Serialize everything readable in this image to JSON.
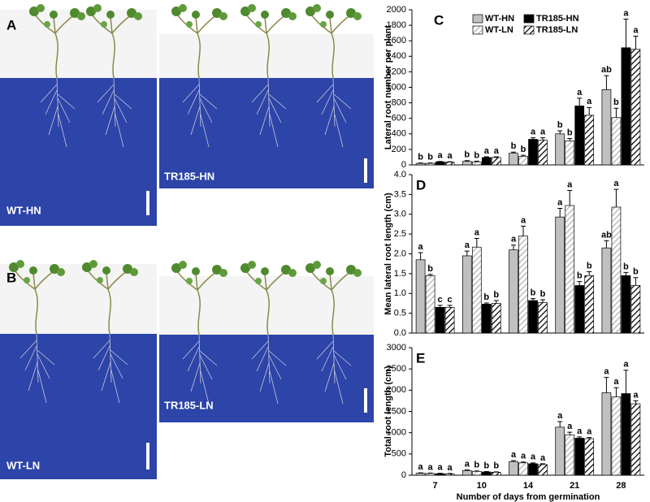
{
  "photos": [
    {
      "panel": "A",
      "labels": [
        "WT-HN",
        "TR185-HN"
      ]
    },
    {
      "panel": "B",
      "labels": [
        "WT-LN",
        "TR185-LN"
      ]
    }
  ],
  "chart_data": [
    {
      "type": "bar",
      "panel": "C",
      "y_label": "Lateral root number per plant",
      "ylim": [
        0,
        2000
      ],
      "yticks": [
        0,
        200,
        400,
        600,
        800,
        1000,
        1200,
        1400,
        1600,
        1800,
        2000
      ],
      "legend": "top",
      "series": [
        {
          "name": "WT-HN",
          "color": "#c0c0c0",
          "hatch": false,
          "values": [
            20,
            45,
            150,
            400,
            970
          ],
          "errors": [
            5,
            10,
            15,
            40,
            180
          ],
          "letters": [
            "b",
            "b",
            "b",
            "b",
            "ab"
          ]
        },
        {
          "name": "WT-LN",
          "color": "#b0b0b0",
          "hatch": true,
          "values": [
            20,
            40,
            110,
            310,
            610
          ],
          "errors": [
            5,
            8,
            15,
            30,
            120
          ],
          "letters": [
            "b",
            "b",
            "b",
            "b",
            "b"
          ]
        },
        {
          "name": "TR185-HN",
          "color": "#000000",
          "hatch": false,
          "values": [
            40,
            95,
            330,
            760,
            1510
          ],
          "errors": [
            5,
            10,
            20,
            100,
            370
          ],
          "letters": [
            "a",
            "a",
            "a",
            "a",
            "a"
          ]
        },
        {
          "name": "TR185-LN",
          "color": "#000000",
          "hatch": true,
          "values": [
            35,
            95,
            320,
            640,
            1490
          ],
          "errors": [
            5,
            10,
            30,
            100,
            170
          ],
          "letters": [
            "a",
            "a",
            "a",
            "a",
            "a"
          ]
        }
      ]
    },
    {
      "type": "bar",
      "panel": "D",
      "y_label": "Mean lateral root length (cm)",
      "ylim": [
        0,
        4
      ],
      "yticks": [
        {
          "value": 0,
          "label": "0.0"
        },
        0.5,
        {
          "value": 1,
          "label": "1.0"
        },
        1.5,
        {
          "value": 2,
          "label": "2.0"
        },
        2.5,
        {
          "value": 3,
          "label": "3.0"
        },
        3.5,
        {
          "value": 4,
          "label": "4.0"
        }
      ],
      "series": [
        {
          "color": "#c0c0c0",
          "hatch": false,
          "values": [
            1.85,
            1.95,
            2.1,
            2.93,
            2.15
          ],
          "errors": [
            0.18,
            0.12,
            0.12,
            0.22,
            0.18
          ],
          "letters": [
            "a",
            "a",
            "a",
            "a",
            "ab"
          ]
        },
        {
          "color": "#b0b0b0",
          "hatch": true,
          "values": [
            1.45,
            2.17,
            2.45,
            3.22,
            3.18
          ],
          "errors": [
            0.03,
            0.22,
            0.25,
            0.38,
            0.45
          ],
          "letters": [
            "b",
            "a",
            "a",
            "a",
            "a"
          ]
        },
        {
          "color": "#000000",
          "hatch": false,
          "values": [
            0.65,
            0.73,
            0.82,
            1.2,
            1.45
          ],
          "errors": [
            0.05,
            0.03,
            0.05,
            0.1,
            0.08
          ],
          "letters": [
            "c",
            "b",
            "b",
            "b",
            "b"
          ]
        },
        {
          "color": "#000000",
          "hatch": true,
          "values": [
            0.65,
            0.75,
            0.77,
            1.45,
            1.2
          ],
          "errors": [
            0.05,
            0.07,
            0.07,
            0.1,
            0.2
          ],
          "letters": [
            "c",
            "b",
            "b",
            "b",
            "b"
          ]
        }
      ]
    },
    {
      "type": "bar",
      "panel": "E",
      "y_label": "Total root length (cm)",
      "x_label": "Number of days from germination",
      "categories": [
        "7",
        "10",
        "14",
        "21",
        "28"
      ],
      "ylim": [
        0,
        3000
      ],
      "yticks": [
        0,
        500,
        1000,
        1500,
        2000,
        2500,
        3000
      ],
      "series": [
        {
          "color": "#c0c0c0",
          "hatch": false,
          "values": [
            45,
            110,
            320,
            1130,
            1940
          ],
          "errors": [
            10,
            15,
            25,
            130,
            360
          ],
          "letters": [
            "a",
            "a",
            "a",
            "a",
            "a"
          ]
        },
        {
          "color": "#b0b0b0",
          "hatch": true,
          "values": [
            40,
            90,
            290,
            950,
            1840
          ],
          "errors": [
            10,
            10,
            20,
            60,
            220
          ],
          "letters": [
            "a",
            "b",
            "a",
            "a",
            "a"
          ]
        },
        {
          "color": "#000000",
          "hatch": false,
          "values": [
            35,
            75,
            270,
            870,
            1920
          ],
          "errors": [
            10,
            10,
            20,
            30,
            550
          ],
          "letters": [
            "a",
            "b",
            "a",
            "a",
            "a"
          ]
        },
        {
          "color": "#000000",
          "hatch": true,
          "values": [
            30,
            70,
            250,
            860,
            1680
          ],
          "errors": [
            10,
            10,
            20,
            25,
            70
          ],
          "letters": [
            "a",
            "b",
            "a",
            "a",
            "a"
          ]
        }
      ]
    }
  ]
}
